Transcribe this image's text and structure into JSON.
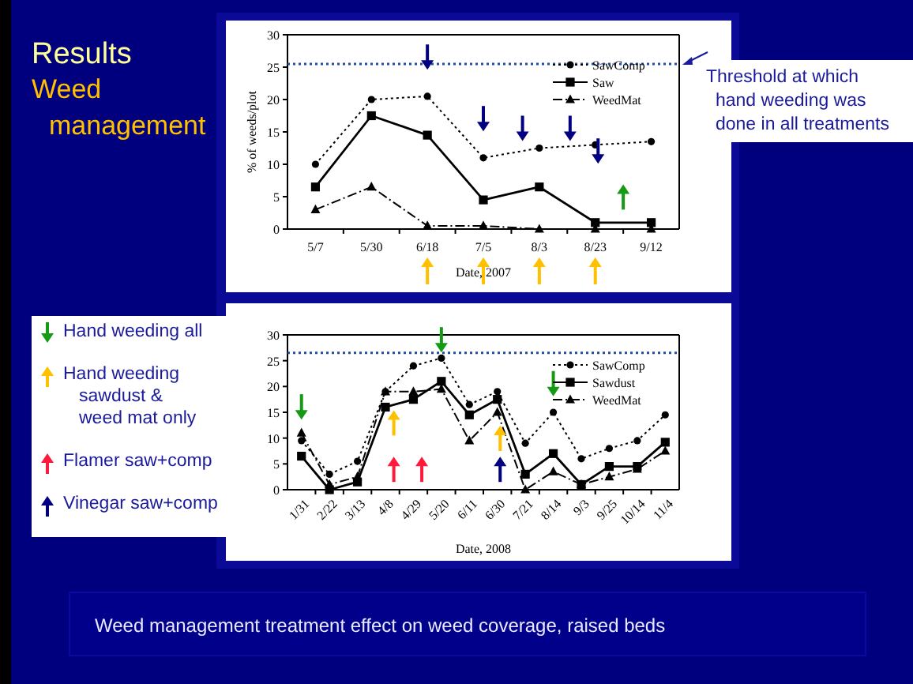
{
  "chart_data": [
    {
      "type": "line",
      "title": "Results",
      "subtitle": "Weed management",
      "categories": [
        "5/7",
        "5/30",
        "6/18",
        "7/5",
        "8/3",
        "8/23",
        "9/12"
      ],
      "xlabel": "Date, 2007",
      "ylabel": "% of weeds/plot",
      "ylim": [
        0,
        30
      ],
      "yticks": [
        0,
        5,
        10,
        15,
        20,
        25,
        30
      ],
      "grid": false,
      "legend": "top right",
      "series": [
        {
          "name": "SawComp",
          "color": "#000000",
          "marker": "circle",
          "line_style": "dotted",
          "values": [
            10,
            20,
            20.5,
            11,
            12.5,
            13,
            13.5
          ]
        },
        {
          "name": "Saw",
          "color": "#000000",
          "marker": "square",
          "line_style": "solid",
          "values": [
            6.5,
            17.5,
            14.5,
            4.5,
            6.5,
            1,
            1
          ]
        },
        {
          "name": "WeedMat",
          "color": "#000000",
          "marker": "triangle",
          "line_style": "dashed",
          "values": [
            3,
            6.5,
            0.5,
            0.5,
            0,
            0,
            0
          ]
        }
      ],
      "ref_lines": [
        {
          "axis": "y",
          "value": 25.5,
          "label": "Threshold at which hand weeding was done in all treatments",
          "color": "#1f4e9e",
          "line_style": "dotted"
        }
      ]
    },
    {
      "type": "line",
      "categories": [
        "1/31",
        "2/22",
        "3/13",
        "4/8",
        "4/29",
        "5/20",
        "6/11",
        "6/30",
        "7/21",
        "8/14",
        "9/3",
        "9/25",
        "10/14",
        "11/4"
      ],
      "xlabel": "Date, 2008",
      "ylim": [
        0,
        30
      ],
      "yticks": [
        0,
        5,
        10,
        15,
        20,
        25,
        30
      ],
      "grid": false,
      "legend": "top right",
      "series": [
        {
          "name": "SawComp",
          "color": "#000000",
          "marker": "circle",
          "line_style": "dotted",
          "values": [
            9.5,
            3,
            5.5,
            19,
            24,
            25.5,
            16.5,
            19,
            9,
            15,
            6,
            8,
            9.5,
            14.5
          ]
        },
        {
          "name": "Sawdust",
          "color": "#000000",
          "marker": "square",
          "line_style": "solid",
          "values": [
            6.5,
            0,
            1.5,
            16,
            17.5,
            21,
            14.5,
            17.5,
            3,
            7,
            1,
            4.5,
            4.5,
            9.2
          ]
        },
        {
          "name": "WeedMat",
          "color": "#000000",
          "marker": "triangle",
          "line_style": "dashed",
          "values": [
            11,
            1,
            2.5,
            19,
            19,
            19.5,
            9.5,
            15,
            0,
            3.5,
            1,
            2.5,
            4,
            7.5
          ]
        }
      ],
      "ref_lines": [
        {
          "axis": "y",
          "value": 26.5,
          "color": "#1f4e9e",
          "line_style": "dotted"
        }
      ],
      "annotations": [
        "Hand weeding all",
        "Hand weeding sawdust & weed mat only",
        "Flamer saw+comp",
        "Vinegar saw+comp",
        "Weed management treatment effect on weed coverage, raised beds"
      ]
    }
  ]
}
